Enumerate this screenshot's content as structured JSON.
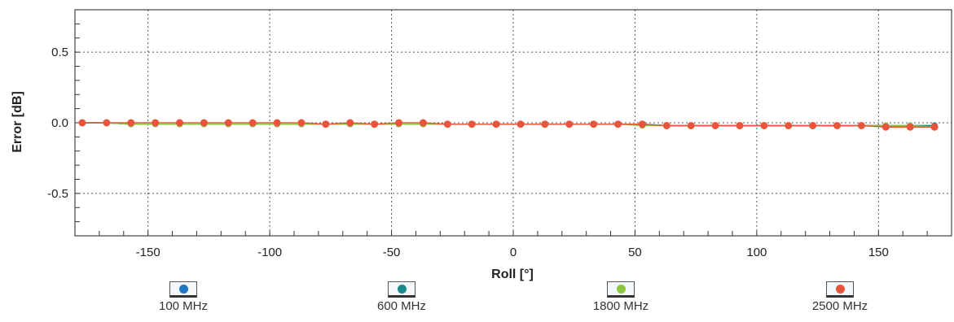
{
  "chart_data": {
    "type": "line",
    "xlabel": "Roll [°]",
    "ylabel": "Error [dB]",
    "xlim": [
      -180,
      180
    ],
    "ylim": [
      -0.8,
      0.8
    ],
    "x_ticks": [
      -150,
      -100,
      -50,
      0,
      50,
      100,
      150
    ],
    "x_tick_labels": [
      "-150",
      "-100",
      "-50",
      "0",
      "50",
      "100",
      "150"
    ],
    "y_ticks": [
      0.5,
      0.0,
      -0.5
    ],
    "y_tick_labels": [
      "0.5",
      "0.0",
      "-0.5"
    ],
    "grid": true,
    "legend_position": "bottom",
    "x": [
      -177,
      -167,
      -157,
      -147,
      -137,
      -127,
      -117,
      -107,
      -97,
      -87,
      -77,
      -67,
      -57,
      -47,
      -37,
      -27,
      -17,
      -7,
      3,
      13,
      23,
      33,
      43,
      53,
      63,
      73,
      83,
      93,
      103,
      113,
      123,
      133,
      143,
      153,
      163,
      173
    ],
    "series": [
      {
        "name": "100 MHz",
        "color": "#1f77c4",
        "values": [
          0.0,
          0.0,
          -0.01,
          -0.01,
          -0.01,
          -0.01,
          -0.01,
          -0.01,
          -0.01,
          -0.01,
          -0.01,
          -0.01,
          -0.01,
          -0.01,
          -0.01,
          -0.01,
          -0.01,
          -0.01,
          -0.01,
          -0.01,
          -0.01,
          -0.01,
          -0.01,
          -0.01,
          -0.02,
          -0.02,
          -0.02,
          -0.02,
          -0.02,
          -0.02,
          -0.02,
          -0.02,
          -0.02,
          -0.02,
          -0.02,
          -0.02
        ]
      },
      {
        "name": "600 MHz",
        "color": "#1a8a8a",
        "values": [
          0.0,
          0.0,
          -0.01,
          -0.01,
          -0.01,
          -0.01,
          -0.01,
          -0.01,
          -0.01,
          -0.01,
          -0.01,
          -0.01,
          -0.01,
          -0.01,
          -0.01,
          -0.01,
          -0.01,
          -0.01,
          -0.01,
          -0.01,
          -0.01,
          -0.01,
          -0.01,
          -0.01,
          -0.02,
          -0.02,
          -0.02,
          -0.02,
          -0.02,
          -0.02,
          -0.02,
          -0.02,
          -0.02,
          -0.02,
          -0.02,
          -0.02
        ]
      },
      {
        "name": "1800 MHz",
        "color": "#8cc63f",
        "values": [
          0.0,
          0.0,
          -0.01,
          -0.01,
          -0.01,
          -0.01,
          -0.01,
          -0.01,
          -0.01,
          -0.01,
          -0.01,
          -0.01,
          -0.01,
          -0.01,
          -0.01,
          -0.01,
          -0.01,
          -0.01,
          -0.01,
          -0.01,
          -0.01,
          -0.01,
          -0.01,
          -0.02,
          -0.02,
          -0.02,
          -0.02,
          -0.02,
          -0.02,
          -0.02,
          -0.02,
          -0.02,
          -0.02,
          -0.02,
          -0.02,
          -0.03
        ]
      },
      {
        "name": "2500 MHz",
        "color": "#e8553a",
        "values": [
          0.0,
          0.0,
          0.0,
          0.0,
          0.0,
          0.0,
          0.0,
          0.0,
          0.0,
          0.0,
          -0.01,
          0.0,
          -0.01,
          0.0,
          0.0,
          -0.01,
          -0.01,
          -0.01,
          -0.01,
          -0.01,
          -0.01,
          -0.01,
          -0.01,
          -0.01,
          -0.02,
          -0.02,
          -0.02,
          -0.02,
          -0.02,
          -0.02,
          -0.02,
          -0.02,
          -0.02,
          -0.03,
          -0.03,
          -0.03
        ]
      }
    ]
  }
}
